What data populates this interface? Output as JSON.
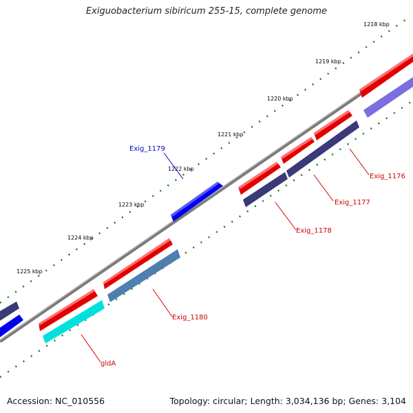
{
  "title": "Exiguobacterium sibiricum 255-15, complete genome",
  "footer": {
    "accession": "Accession: NC_010556",
    "summary": "Topology: circular; Length: 3,034,136 bp; Genes: 3,104"
  },
  "ticks": [
    {
      "label": "1218 kbp"
    },
    {
      "label": "1219 kbp"
    },
    {
      "label": "1220 kbp"
    },
    {
      "label": "1221 kbp"
    },
    {
      "label": "1222 kbp"
    },
    {
      "label": "1223 kbp"
    },
    {
      "label": "1224 kbp"
    },
    {
      "label": "1225 kbp"
    }
  ],
  "genes": [
    {
      "name": "Exig_1176",
      "color": "#cc0000"
    },
    {
      "name": "Exig_1177",
      "color": "#cc0000"
    },
    {
      "name": "Exig_1178",
      "color": "#cc0000"
    },
    {
      "name": "Exig_1179",
      "color": "#0000cc"
    },
    {
      "name": "Exig_1180",
      "color": "#cc0000"
    },
    {
      "name": "gldA",
      "color": "#cc0000"
    }
  ],
  "colors": {
    "backbone": "#808080",
    "cds": "#ff0000",
    "cds_dark": "#c80000",
    "reverse_gene": "#0000ee",
    "cog_purple": "#3a3a78",
    "cog_steel": "#4f7fb0",
    "cog_cyan": "#00e0e0",
    "cog_lavender": "#7b6ee0",
    "tick_green": "#1a7a1a"
  }
}
